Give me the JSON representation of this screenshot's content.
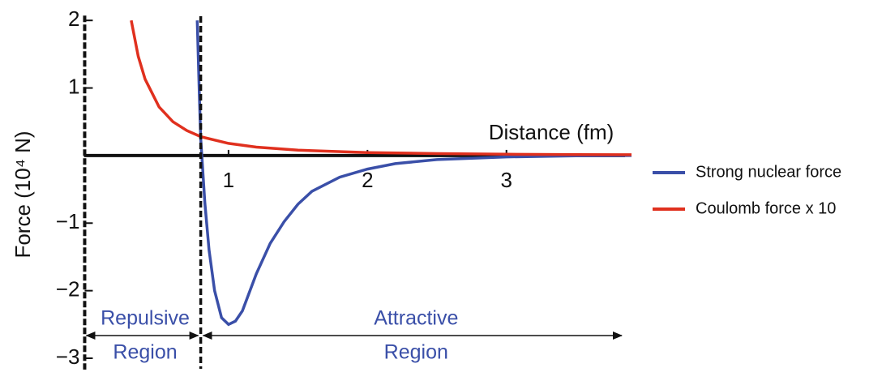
{
  "chart_data": {
    "type": "line",
    "x_label": "Distance (fm)",
    "y_label": "Force (10⁴ N)",
    "xlim": [
      -0.04,
      3.9
    ],
    "ylim": [
      -3,
      2
    ],
    "xticks": [
      1,
      2,
      3
    ],
    "yticks": [
      {
        "value": -3,
        "label": "−3"
      },
      {
        "value": -2,
        "label": "−2"
      },
      {
        "value": -1,
        "label": "−1"
      },
      1,
      2
    ],
    "boundary_x": 0.8,
    "annotations": [
      {
        "lines": [
          "Repulsive",
          "Region"
        ]
      },
      {
        "lines": [
          "Attractive",
          "Region"
        ]
      }
    ],
    "series": [
      {
        "name": "Strong nuclear force",
        "color": "#3a4fa8",
        "x": [
          0.775,
          0.79,
          0.8,
          0.83,
          0.86,
          0.9,
          0.95,
          1.0,
          1.05,
          1.1,
          1.2,
          1.3,
          1.4,
          1.5,
          1.6,
          1.8,
          2.0,
          2.2,
          2.5,
          3.0,
          3.5,
          3.9
        ],
        "values": [
          2.0,
          0.9,
          0.25,
          -0.7,
          -1.4,
          -2.0,
          -2.4,
          -2.5,
          -2.45,
          -2.3,
          -1.75,
          -1.3,
          -0.98,
          -0.72,
          -0.53,
          -0.32,
          -0.2,
          -0.12,
          -0.06,
          -0.02,
          -0.005,
          0.0
        ]
      },
      {
        "name": "Coulomb force x 10",
        "color": "#e0301e",
        "x": [
          0.3,
          0.35,
          0.4,
          0.5,
          0.6,
          0.7,
          0.8,
          1.0,
          1.2,
          1.5,
          2.0,
          2.5,
          3.0,
          3.5,
          3.9
        ],
        "values": [
          2.0,
          1.47,
          1.13,
          0.72,
          0.5,
          0.37,
          0.28,
          0.18,
          0.125,
          0.08,
          0.045,
          0.029,
          0.02,
          0.015,
          0.012
        ]
      }
    ]
  }
}
